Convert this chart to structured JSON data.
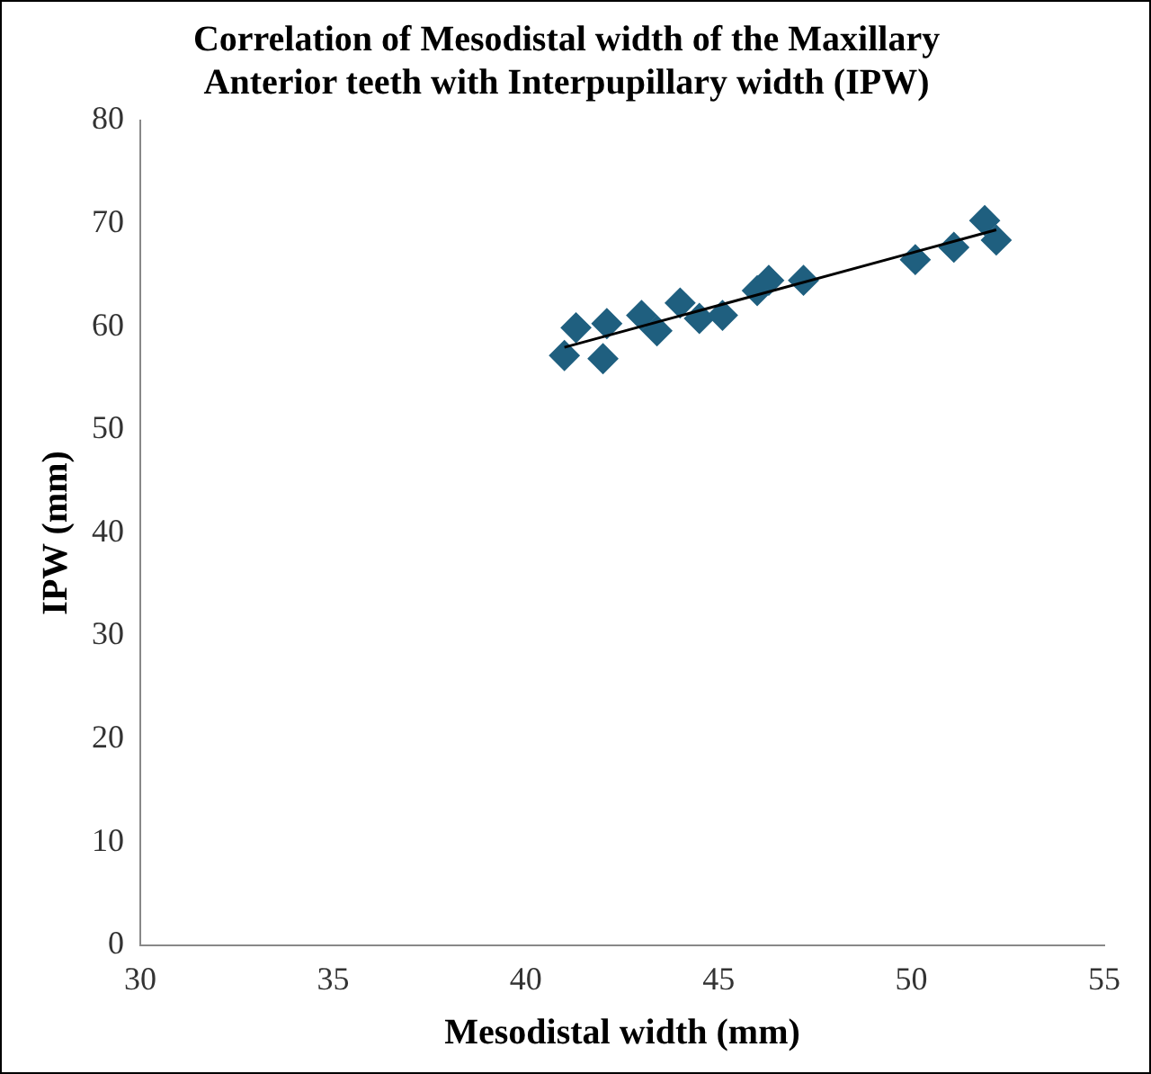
{
  "chart_data": {
    "type": "scatter",
    "title": "Correlation of  Mesodistal width of the Maxillary Anterior teeth with Interpupillary width (IPW)",
    "xlabel": "Mesodistal width (mm)",
    "ylabel": "IPW (mm)",
    "xlim": [
      30,
      55
    ],
    "xticks": [
      30,
      35,
      40,
      45,
      50,
      55
    ],
    "ylim": [
      0,
      80
    ],
    "yticks": [
      0,
      10,
      20,
      30,
      40,
      50,
      60,
      70,
      80
    ],
    "grid": false,
    "legend": false,
    "marker": "diamond",
    "series": [
      {
        "type": "scatter",
        "color": "#1f5f7f",
        "x": [
          41.0,
          41.3,
          42.0,
          42.1,
          43.0,
          43.4,
          44.0,
          44.5,
          45.1,
          46.0,
          46.3,
          47.2,
          50.1,
          51.1,
          51.9,
          52.2
        ],
        "values": [
          57.2,
          59.9,
          56.9,
          60.3,
          61.1,
          59.6,
          62.3,
          60.8,
          61.1,
          63.5,
          64.5,
          64.5,
          66.5,
          67.7,
          70.3,
          68.4
        ]
      },
      {
        "type": "line",
        "color": "#000000",
        "marker": "none",
        "x": [
          41.0,
          52.2
        ],
        "values": [
          58.0,
          69.4
        ]
      }
    ]
  }
}
